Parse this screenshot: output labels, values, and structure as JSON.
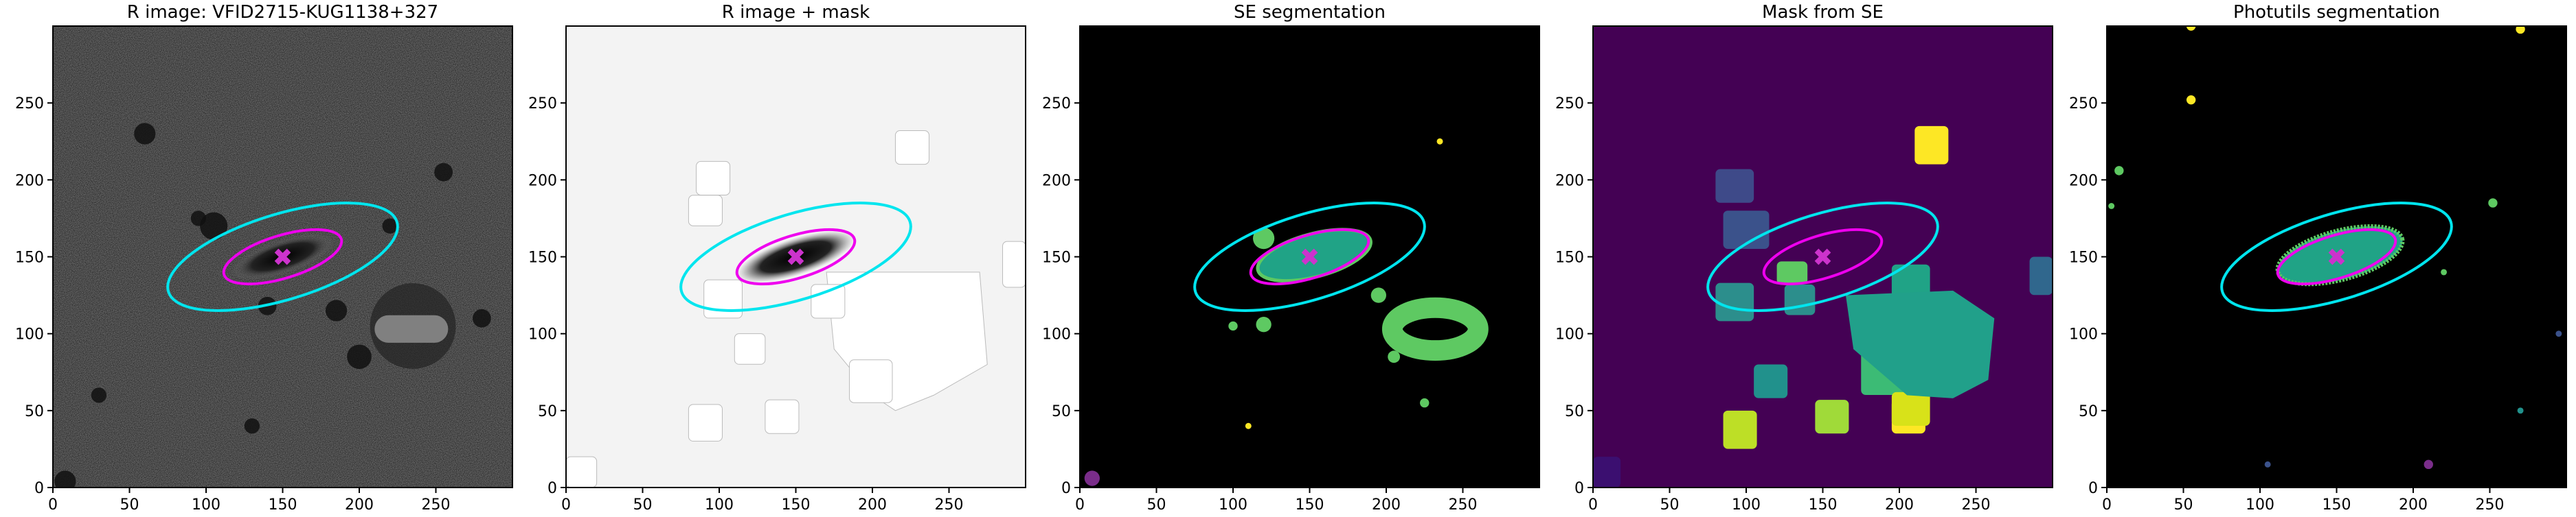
{
  "chart_data": [
    {
      "type": "image",
      "title": "R image: VFID2715-KUG1138+327",
      "xlim": [
        0,
        300
      ],
      "ylim": [
        0,
        300
      ],
      "xticks": [
        0,
        50,
        100,
        150,
        200,
        250
      ],
      "yticks": [
        0,
        50,
        100,
        150,
        200,
        250
      ]
    },
    {
      "type": "image",
      "title": "R image + mask",
      "xlim": [
        0,
        300
      ],
      "ylim": [
        0,
        300
      ],
      "xticks": [
        0,
        50,
        100,
        150,
        200,
        250
      ],
      "yticks": [
        0,
        50,
        100,
        150,
        200,
        250
      ]
    },
    {
      "type": "image",
      "title": "SE segmentation",
      "xlim": [
        0,
        300
      ],
      "ylim": [
        0,
        300
      ],
      "xticks": [
        0,
        50,
        100,
        150,
        200,
        250
      ],
      "yticks": [
        0,
        50,
        100,
        150,
        200,
        250
      ]
    },
    {
      "type": "image",
      "title": "Mask from SE",
      "xlim": [
        0,
        300
      ],
      "ylim": [
        0,
        300
      ],
      "xticks": [
        0,
        50,
        100,
        150,
        200,
        250
      ],
      "yticks": [
        0,
        50,
        100,
        150,
        200,
        250
      ]
    },
    {
      "type": "image",
      "title": "Photutils segmentation",
      "xlim": [
        0,
        300
      ],
      "ylim": [
        0,
        300
      ],
      "xticks": [
        0,
        50,
        100,
        150,
        200,
        250
      ],
      "yticks": [
        0,
        50,
        100,
        150,
        200,
        250
      ]
    }
  ]
}
